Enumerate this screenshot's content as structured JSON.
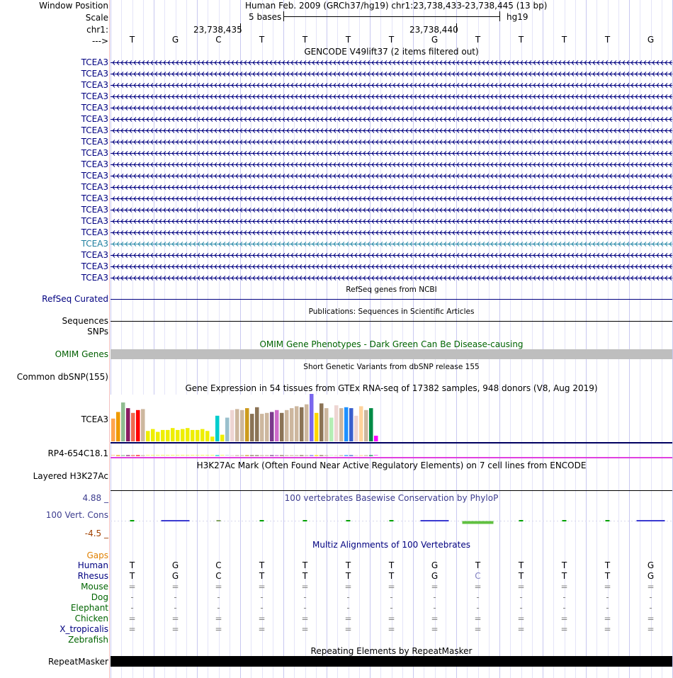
{
  "header": {
    "window_position_label": "Window Position",
    "window_position_value": "Human Feb. 2009 (GRCh37/hg19)   chr1:23,738,433-23,738,445 (13 bp)",
    "scale_label": "Scale",
    "scale_value": "5 bases",
    "assembly": "hg19",
    "chrom_label": "chr1:",
    "coord_a": "23,738,435",
    "coord_b": "23,738,440",
    "strand_label": "--->"
  },
  "bases": [
    "T",
    "G",
    "C",
    "T",
    "T",
    "T",
    "T",
    "G",
    "T",
    "T",
    "T",
    "T",
    "G"
  ],
  "gencode": {
    "title": "GENCODE V49lift37 (2 items filtered out)",
    "tracks": [
      "TCEA3",
      "TCEA3",
      "TCEA3",
      "TCEA3",
      "TCEA3",
      "TCEA3",
      "TCEA3",
      "TCEA3",
      "TCEA3",
      "TCEA3",
      "TCEA3",
      "TCEA3",
      "TCEA3",
      "TCEA3",
      "TCEA3",
      "TCEA3",
      "TCEA3",
      "TCEA3",
      "TCEA3",
      "TCEA3"
    ],
    "highlight_index": 16
  },
  "refseq": {
    "title": "RefSeq genes from NCBI",
    "label": "RefSeq Curated"
  },
  "publications": {
    "title": "Publications: Sequences in Scientific Articles",
    "label": "Sequences"
  },
  "snps": {
    "label": "SNPs"
  },
  "omim": {
    "title": "OMIM Gene Phenotypes - Dark Green Can Be Disease-causing",
    "label": "OMIM Genes"
  },
  "dbsnp": {
    "title": "Short Genetic Variants from dbSNP release 155",
    "label": "Common dbSNP(155)"
  },
  "gtex": {
    "title": "Gene Expression in 54 tissues from GTEx RNA-seq of 17382 samples, 948 donors (V8, Aug 2019)",
    "label": "TCEA3",
    "sub_label": "RP4-654C18.1",
    "relative_heights": [
      0.48,
      0.62,
      0.82,
      0.7,
      0.6,
      0.66,
      0.68,
      0.22,
      0.26,
      0.2,
      0.24,
      0.24,
      0.28,
      0.24,
      0.26,
      0.28,
      0.24,
      0.24,
      0.26,
      0.22,
      0.1,
      0.54,
      0.14,
      0.5,
      0.66,
      0.68,
      0.66,
      0.7,
      0.58,
      0.72,
      0.58,
      0.6,
      0.62,
      0.66,
      0.6,
      0.66,
      0.7,
      0.74,
      0.72,
      0.78,
      1.0,
      0.6,
      0.8,
      0.7,
      0.5,
      0.76,
      0.7,
      0.72,
      0.7,
      0.54,
      0.74,
      0.66,
      0.7,
      0.12
    ],
    "colors": [
      "#ffa54f",
      "#ee9a00",
      "#8fbc8f",
      "#8b1c62",
      "#ee6a50",
      "#ff0000",
      "#cdb79e",
      "#eeee00",
      "#eeee00",
      "#eeee00",
      "#eeee00",
      "#eeee00",
      "#eeee00",
      "#eeee00",
      "#eeee00",
      "#eeee00",
      "#eeee00",
      "#eeee00",
      "#eeee00",
      "#eeee00",
      "#eeee00",
      "#00cdcd",
      "#eeee00",
      "#9ac0cd",
      "#eed5d2",
      "#cdb79e",
      "#cdb79e",
      "#cd9b1d",
      "#8b7355",
      "#8b7355",
      "#cdb79e",
      "#cdb79e",
      "#7a378b",
      "#cd69c9",
      "#8b7355",
      "#cdb79e",
      "#cdb79e",
      "#cdb79e",
      "#8b7355",
      "#cdb79e",
      "#7a67ee",
      "#ffd700",
      "#8b7355",
      "#cdb79e",
      "#b4eeb4",
      "#eed5d2",
      "#cdb79e",
      "#1e90ff",
      "#3a5fcd",
      "#eed5d2",
      "#ffd39b",
      "#cdb79e",
      "#008b45",
      "#ff00ff"
    ]
  },
  "h3k27ac": {
    "title": "H3K27Ac Mark (Often Found Near Active Regulatory Elements) on 7 cell lines from ENCODE",
    "label": "Layered H3K27Ac"
  },
  "phylop": {
    "title": "100 vertebrates Basewise Conservation by PhyloP",
    "label": "100 Vert. Cons",
    "y_max": "4.88 _",
    "y_min": "-4.5 _"
  },
  "multiz": {
    "gaps_label": "Gaps",
    "title": "Multiz Alignments of 100 Vertebrates",
    "species": [
      {
        "name": "Human",
        "bases": [
          "T",
          "G",
          "C",
          "T",
          "T",
          "T",
          "T",
          "G",
          "T",
          "T",
          "T",
          "T",
          "G"
        ],
        "color": "#000080"
      },
      {
        "name": "Rhesus",
        "bases": [
          "T",
          "G",
          "C",
          "T",
          "T",
          "T",
          "T",
          "G",
          "C",
          "T",
          "T",
          "T",
          "G"
        ],
        "color": "#000080"
      },
      {
        "name": "Mouse",
        "bases": [
          "=",
          "=",
          "=",
          "=",
          "=",
          "=",
          "=",
          "=",
          "=",
          "=",
          "=",
          "=",
          "="
        ],
        "color": "#006400"
      },
      {
        "name": "Dog",
        "bases": [
          "-",
          "-",
          "-",
          "-",
          "-",
          "-",
          "-",
          "-",
          "-",
          "-",
          "-",
          "-",
          "-"
        ],
        "color": "#006400"
      },
      {
        "name": "Elephant",
        "bases": [
          "-",
          "-",
          "-",
          "-",
          "-",
          "-",
          "-",
          "-",
          "-",
          "-",
          "-",
          "-",
          "-"
        ],
        "color": "#006400"
      },
      {
        "name": "Chicken",
        "bases": [
          "=",
          "=",
          "=",
          "=",
          "=",
          "=",
          "=",
          "=",
          "=",
          "=",
          "=",
          "=",
          "="
        ],
        "color": "#006400"
      },
      {
        "name": "X_tropicalis",
        "bases": [
          "=",
          "=",
          "=",
          "=",
          "=",
          "=",
          "=",
          "=",
          "=",
          "=",
          "=",
          "=",
          "="
        ],
        "color": "#000080"
      },
      {
        "name": "Zebrafish",
        "bases": [
          "",
          "",
          "",
          "",
          "",
          "",
          "",
          "",
          "",
          "",
          "",
          "",
          ""
        ],
        "color": "#006400"
      }
    ]
  },
  "repeatmasker": {
    "title": "Repeating Elements by RepeatMasker",
    "label": "RepeatMasker"
  }
}
